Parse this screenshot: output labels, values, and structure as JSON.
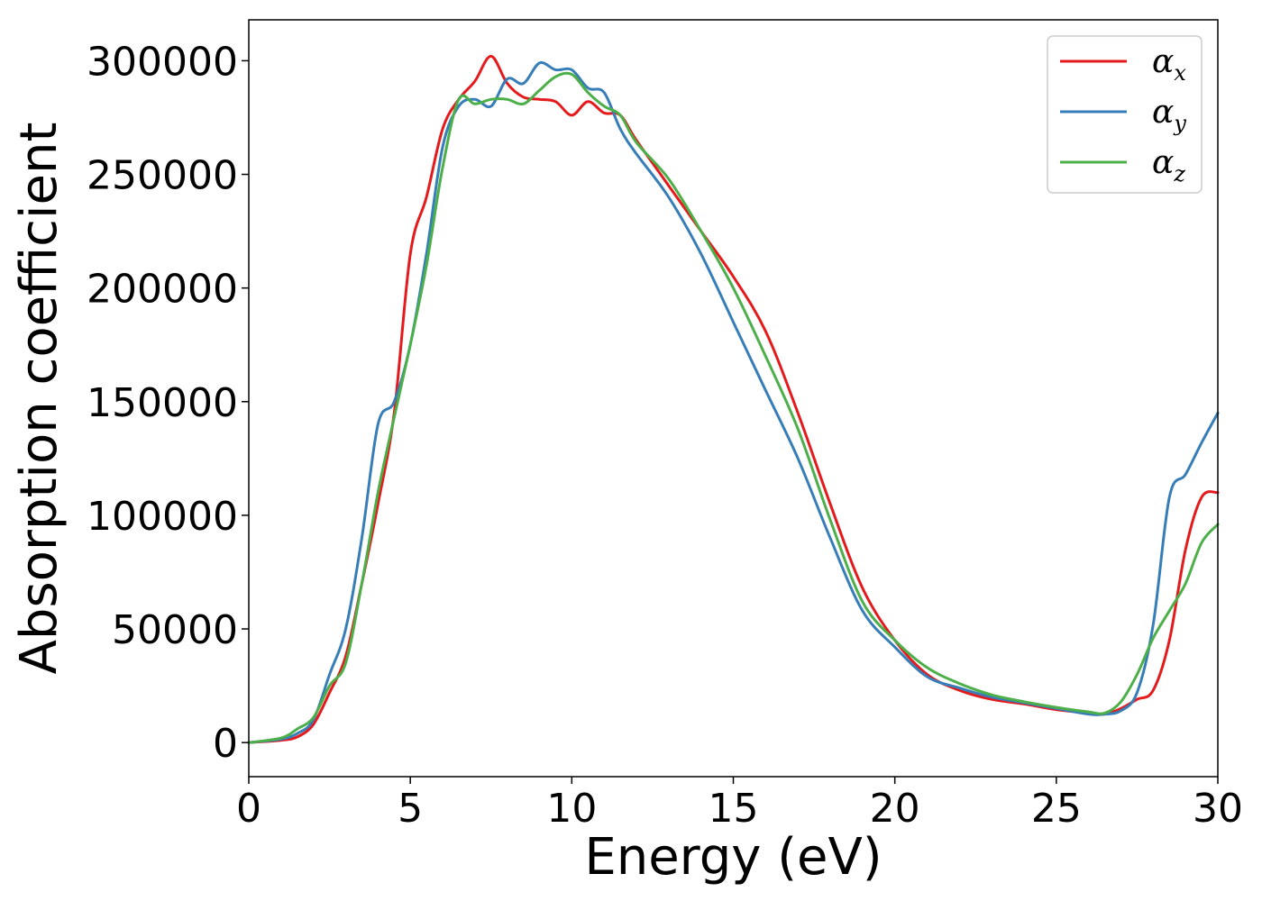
{
  "chart_data": {
    "type": "line",
    "title": "",
    "xlabel": "Energy (eV)",
    "ylabel": "Absorption coefficient",
    "xlim": [
      0,
      30
    ],
    "ylim": [
      -15000,
      318000
    ],
    "xticks": [
      0,
      5,
      10,
      15,
      20,
      25,
      30
    ],
    "xtick_labels": [
      "0",
      "5",
      "10",
      "15",
      "20",
      "25",
      "30"
    ],
    "yticks": [
      0,
      50000,
      100000,
      150000,
      200000,
      250000,
      300000
    ],
    "ytick_labels": [
      "0",
      "50000",
      "100000",
      "150000",
      "200000",
      "250000",
      "300000"
    ],
    "grid": false,
    "legend_position": "top-right",
    "x": [
      0,
      1,
      1.5,
      2,
      2.5,
      3,
      3.5,
      4,
      4.5,
      5,
      5.5,
      6,
      6.5,
      7,
      7.5,
      8,
      8.5,
      9,
      9.5,
      10,
      10.5,
      11,
      11.5,
      12,
      13,
      14,
      15,
      16,
      17,
      18,
      19,
      20,
      21,
      22,
      23,
      24,
      25,
      26,
      26.5,
      27,
      27.5,
      28,
      28.5,
      29,
      29.5,
      30
    ],
    "series": [
      {
        "name": "α",
        "subscript": "x",
        "color": "#e41a1c",
        "values": [
          0,
          1000,
          2500,
          8000,
          22000,
          38000,
          70000,
          105000,
          145000,
          215000,
          240000,
          270000,
          283000,
          291000,
          302000,
          290000,
          284000,
          283000,
          282000,
          276000,
          282000,
          277000,
          276000,
          265000,
          245000,
          225000,
          205000,
          181000,
          145000,
          105000,
          68000,
          45000,
          30000,
          23000,
          19000,
          17000,
          14500,
          13000,
          12500,
          15000,
          19000,
          23000,
          45000,
          85000,
          108000,
          110000
        ]
      },
      {
        "name": "α",
        "subscript": "y",
        "color": "#377eb8",
        "values": [
          0,
          1500,
          4000,
          10000,
          30000,
          50000,
          90000,
          140000,
          150000,
          175000,
          215000,
          262000,
          280000,
          283000,
          280000,
          292000,
          290000,
          299000,
          296000,
          296000,
          288000,
          286000,
          270000,
          259000,
          240000,
          215000,
          185000,
          155000,
          125000,
          90000,
          58000,
          42000,
          29000,
          24000,
          20000,
          17500,
          15000,
          12500,
          12500,
          14000,
          22000,
          52000,
          108000,
          118000,
          132000,
          145000
        ]
      },
      {
        "name": "α",
        "subscript": "z",
        "color": "#4daf4a",
        "values": [
          0,
          2000,
          6000,
          11000,
          25000,
          35000,
          70000,
          110000,
          143000,
          175000,
          210000,
          253000,
          283000,
          281000,
          283000,
          283000,
          281000,
          287000,
          293000,
          294000,
          286000,
          280000,
          276000,
          264000,
          248000,
          225000,
          200000,
          170000,
          138000,
          98000,
          62000,
          45000,
          33000,
          26000,
          21000,
          18000,
          15500,
          13500,
          13000,
          18000,
          30000,
          46000,
          58000,
          70000,
          88000,
          96000
        ]
      }
    ]
  }
}
